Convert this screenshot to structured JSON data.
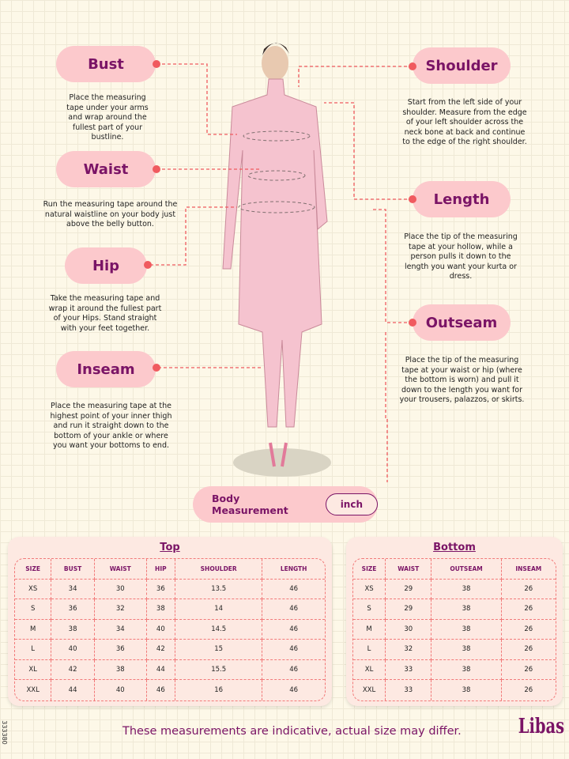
{
  "labels": [
    {
      "name": "Bust",
      "desc": "Place the measuring tape under your arms and wrap around the fullest part of your bustline."
    },
    {
      "name": "Waist",
      "desc": "Run the measuring tape around the natural waistline on your body just above the belly button."
    },
    {
      "name": "Hip",
      "desc": "Take the measuring tape and wrap it around the fullest part of your Hips. Stand straight with your feet together."
    },
    {
      "name": "Inseam",
      "desc": "Place the measuring tape at the highest point of your inner thigh and run it straight down to the bottom of your ankle or where you want your bottoms to end."
    },
    {
      "name": "Shoulder",
      "desc": "Start from the left side of your shoulder. Measure from the edge of your left shoulder across the neck bone at back and continue to the edge of the right shoulder."
    },
    {
      "name": "Length",
      "desc": "Place the tip of the measuring tape at your hollow, while a person pulls it down to the length you want your kurta or dress."
    },
    {
      "name": "Outseam",
      "desc": "Place the tip of the measuring tape at your waist or hip (where the bottom is worn) and pull it down to the length you want for your trousers, palazzos, or skirts."
    }
  ],
  "unit_bar": {
    "label": "Body Measurement",
    "unit": "inch"
  },
  "top": {
    "title": "Top",
    "headers": [
      "SIZE",
      "BUST",
      "WAIST",
      "HIP",
      "SHOULDER",
      "LENGTH"
    ],
    "rows": [
      [
        "XS",
        "34",
        "30",
        "36",
        "13.5",
        "46"
      ],
      [
        "S",
        "36",
        "32",
        "38",
        "14",
        "46"
      ],
      [
        "M",
        "38",
        "34",
        "40",
        "14.5",
        "46"
      ],
      [
        "L",
        "40",
        "36",
        "42",
        "15",
        "46"
      ],
      [
        "XL",
        "42",
        "38",
        "44",
        "15.5",
        "46"
      ],
      [
        "XXL",
        "44",
        "40",
        "46",
        "16",
        "46"
      ]
    ]
  },
  "bottom": {
    "title": "Bottom",
    "headers": [
      "SIZE",
      "WAIST",
      "OUTSEAM",
      "INSEAM"
    ],
    "rows": [
      [
        "XS",
        "29",
        "38",
        "26"
      ],
      [
        "S",
        "29",
        "38",
        "26"
      ],
      [
        "M",
        "30",
        "38",
        "26"
      ],
      [
        "L",
        "32",
        "38",
        "26"
      ],
      [
        "XL",
        "33",
        "38",
        "26"
      ],
      [
        "XXL",
        "33",
        "38",
        "26"
      ]
    ]
  },
  "footer": {
    "note": "These measurements are indicative, actual size may differ.",
    "brand": "Libas",
    "code": "333380"
  },
  "colors": {
    "pill": "#fcc9cc",
    "accent": "#7a1466",
    "dash": "#f05a5f"
  }
}
